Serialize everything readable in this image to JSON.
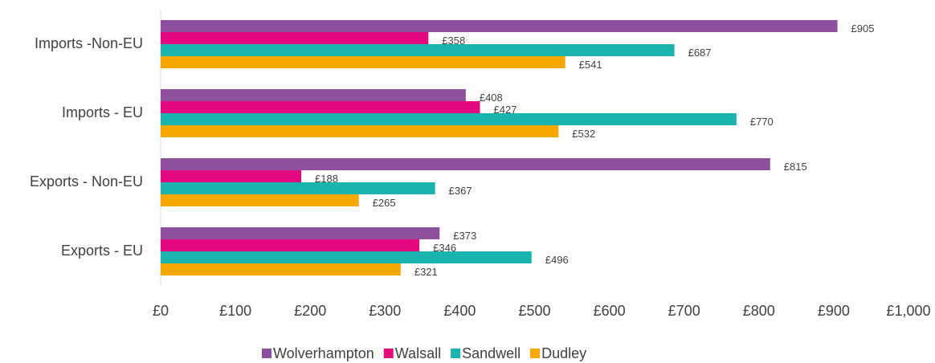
{
  "chart_data": {
    "type": "bar",
    "orientation": "horizontal",
    "categories": [
      "Imports -Non-EU",
      "Imports - EU",
      "Exports - Non-EU",
      "Exports - EU"
    ],
    "series": [
      {
        "name": "Wolverhampton",
        "color": "#8e4f9f",
        "values": [
          905,
          408,
          815,
          373
        ],
        "value_labels": [
          "£905",
          "£408",
          "£815",
          "£373"
        ]
      },
      {
        "name": "Walsall",
        "color": "#e5097f",
        "values": [
          358,
          427,
          188,
          346
        ],
        "value_labels": [
          "£358",
          "£427",
          "£188",
          "£346"
        ]
      },
      {
        "name": "Sandwell",
        "color": "#1bb3ae",
        "values": [
          687,
          770,
          367,
          496
        ],
        "value_labels": [
          "£687",
          "£770",
          "£367",
          "£496"
        ]
      },
      {
        "name": "Dudley",
        "color": "#f7a800",
        "values": [
          541,
          532,
          265,
          321
        ],
        "value_labels": [
          "£541",
          "£532",
          "£265",
          "£321"
        ]
      }
    ],
    "xlim": [
      0,
      1000
    ],
    "xticks": [
      {
        "value": 0,
        "label": "£0"
      },
      {
        "value": 100,
        "label": "£100"
      },
      {
        "value": 200,
        "label": "£200"
      },
      {
        "value": 300,
        "label": "£300"
      },
      {
        "value": 400,
        "label": "£400"
      },
      {
        "value": 500,
        "label": "£500"
      },
      {
        "value": 600,
        "label": "£600"
      },
      {
        "value": 700,
        "label": "£700"
      },
      {
        "value": 800,
        "label": "£800"
      },
      {
        "value": 900,
        "label": "£900"
      },
      {
        "value": 1000,
        "label": "£1,000"
      }
    ],
    "legend": "bottom"
  }
}
